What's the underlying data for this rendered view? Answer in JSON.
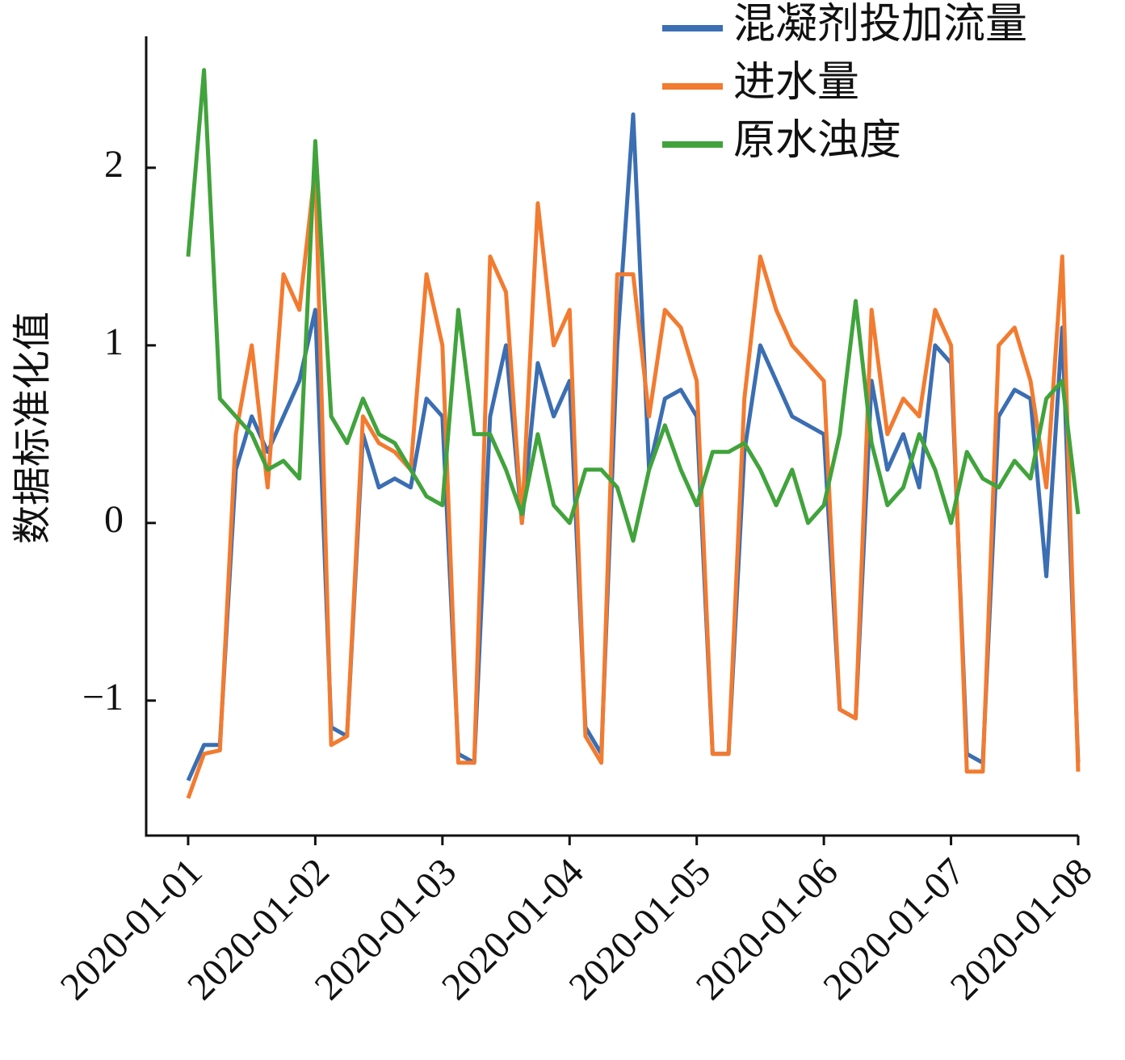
{
  "chart_data": {
    "type": "line",
    "y_label": "数据标准化值",
    "x": [
      0,
      0.125,
      0.25,
      0.375,
      0.5,
      0.625,
      0.75,
      0.875,
      1,
      1.125,
      1.25,
      1.375,
      1.5,
      1.625,
      1.75,
      1.875,
      2,
      2.125,
      2.25,
      2.375,
      2.5,
      2.625,
      2.75,
      2.875,
      3,
      3.125,
      3.25,
      3.375,
      3.5,
      3.625,
      3.75,
      3.875,
      4,
      4.125,
      4.25,
      4.375,
      4.5,
      4.625,
      4.75,
      4.875,
      5,
      5.125,
      5.25,
      5.375,
      5.5,
      5.625,
      5.75,
      5.875,
      6,
      6.125,
      6.25,
      6.375,
      6.5,
      6.625,
      6.75,
      6.875,
      7
    ],
    "series": [
      {
        "name": "混凝剂投加流量",
        "color": "#3b6eb2",
        "values": [
          -1.45,
          -1.25,
          -1.25,
          0.3,
          0.6,
          0.4,
          0.6,
          0.8,
          1.2,
          -1.15,
          -1.2,
          0.5,
          0.2,
          0.25,
          0.2,
          0.7,
          0.6,
          -1.3,
          -1.35,
          0.6,
          1.0,
          0.0,
          0.9,
          0.6,
          0.8,
          -1.15,
          -1.3,
          1.0,
          2.3,
          0.3,
          0.7,
          0.75,
          0.6,
          -1.3,
          -1.3,
          0.4,
          1.0,
          0.8,
          0.6,
          0.55,
          0.5,
          -1.05,
          -1.1,
          0.8,
          0.3,
          0.5,
          0.2,
          1.0,
          0.9,
          -1.3,
          -1.35,
          0.6,
          0.75,
          0.7,
          -0.3,
          1.1,
          -1.35
        ]
      },
      {
        "name": "进水量",
        "color": "#f27b30",
        "values": [
          -1.55,
          -1.3,
          -1.28,
          0.5,
          1.0,
          0.2,
          1.4,
          1.2,
          2.0,
          -1.25,
          -1.2,
          0.6,
          0.45,
          0.4,
          0.3,
          1.4,
          1.0,
          -1.35,
          -1.35,
          1.5,
          1.3,
          0.0,
          1.8,
          1.0,
          1.2,
          -1.2,
          -1.35,
          1.4,
          1.4,
          0.6,
          1.2,
          1.1,
          0.8,
          -1.3,
          -1.3,
          0.7,
          1.5,
          1.2,
          1.0,
          0.9,
          0.8,
          -1.05,
          -1.1,
          1.2,
          0.5,
          0.7,
          0.6,
          1.2,
          1.0,
          -1.4,
          -1.4,
          1.0,
          1.1,
          0.8,
          0.2,
          1.5,
          -1.4
        ]
      },
      {
        "name": "原水浊度",
        "color": "#41a33c",
        "values": [
          1.5,
          2.55,
          0.7,
          0.6,
          0.5,
          0.3,
          0.35,
          0.25,
          2.15,
          0.6,
          0.45,
          0.7,
          0.5,
          0.45,
          0.3,
          0.15,
          0.1,
          1.2,
          0.5,
          0.5,
          0.3,
          0.05,
          0.5,
          0.1,
          0.0,
          0.3,
          0.3,
          0.2,
          -0.1,
          0.3,
          0.55,
          0.3,
          0.1,
          0.4,
          0.4,
          0.45,
          0.3,
          0.1,
          0.3,
          0.0,
          0.1,
          0.5,
          1.25,
          0.45,
          0.1,
          0.2,
          0.5,
          0.3,
          0.0,
          0.4,
          0.25,
          0.2,
          0.35,
          0.25,
          0.7,
          0.8,
          0.05
        ]
      }
    ],
    "xlim": [
      -0.33,
      7.0
    ],
    "xticks": [
      {
        "value": 0,
        "label": "2020-01-01"
      },
      {
        "value": 1,
        "label": "2020-01-02"
      },
      {
        "value": 2,
        "label": "2020-01-03"
      },
      {
        "value": 3,
        "label": "2020-01-04"
      },
      {
        "value": 4,
        "label": "2020-01-05"
      },
      {
        "value": 5,
        "label": "2020-01-06"
      },
      {
        "value": 6,
        "label": "2020-01-07"
      },
      {
        "value": 7,
        "label": "2020-01-08"
      }
    ],
    "ylim": [
      -1.76,
      2.74
    ],
    "yticks": [
      {
        "value": -1,
        "label": "−1"
      },
      0,
      1,
      2
    ],
    "legend": "upper right"
  }
}
